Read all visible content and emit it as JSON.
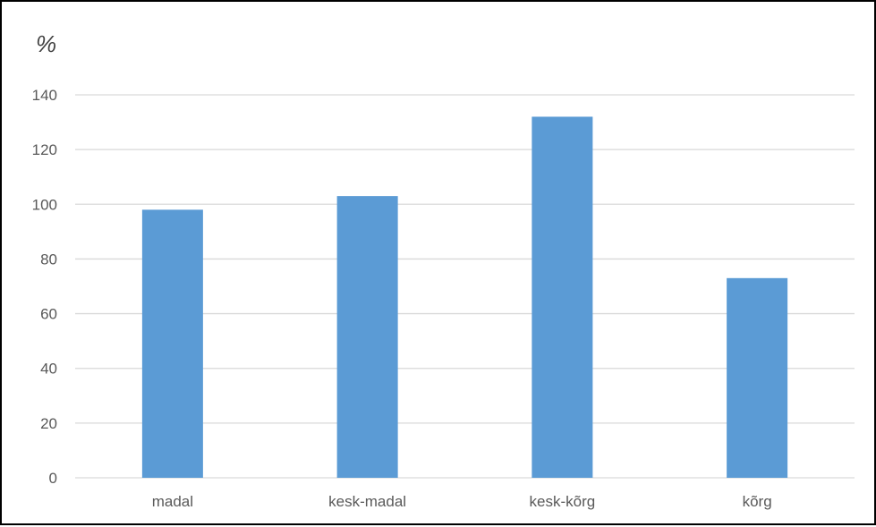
{
  "chart_data": {
    "type": "bar",
    "title": "",
    "xlabel": "",
    "ylabel": "%",
    "categories": [
      "madal",
      "kesk-madal",
      "kesk-kõrg",
      "kõrg"
    ],
    "values": [
      98,
      103,
      132,
      73
    ],
    "ylim": [
      0,
      140
    ],
    "yticks": [
      0,
      20,
      40,
      60,
      80,
      100,
      120,
      140
    ],
    "grid": true,
    "legend": "none",
    "bar_color": "#5B9BD5",
    "grid_color": "#D9D9D9",
    "label_color": "#595959"
  }
}
